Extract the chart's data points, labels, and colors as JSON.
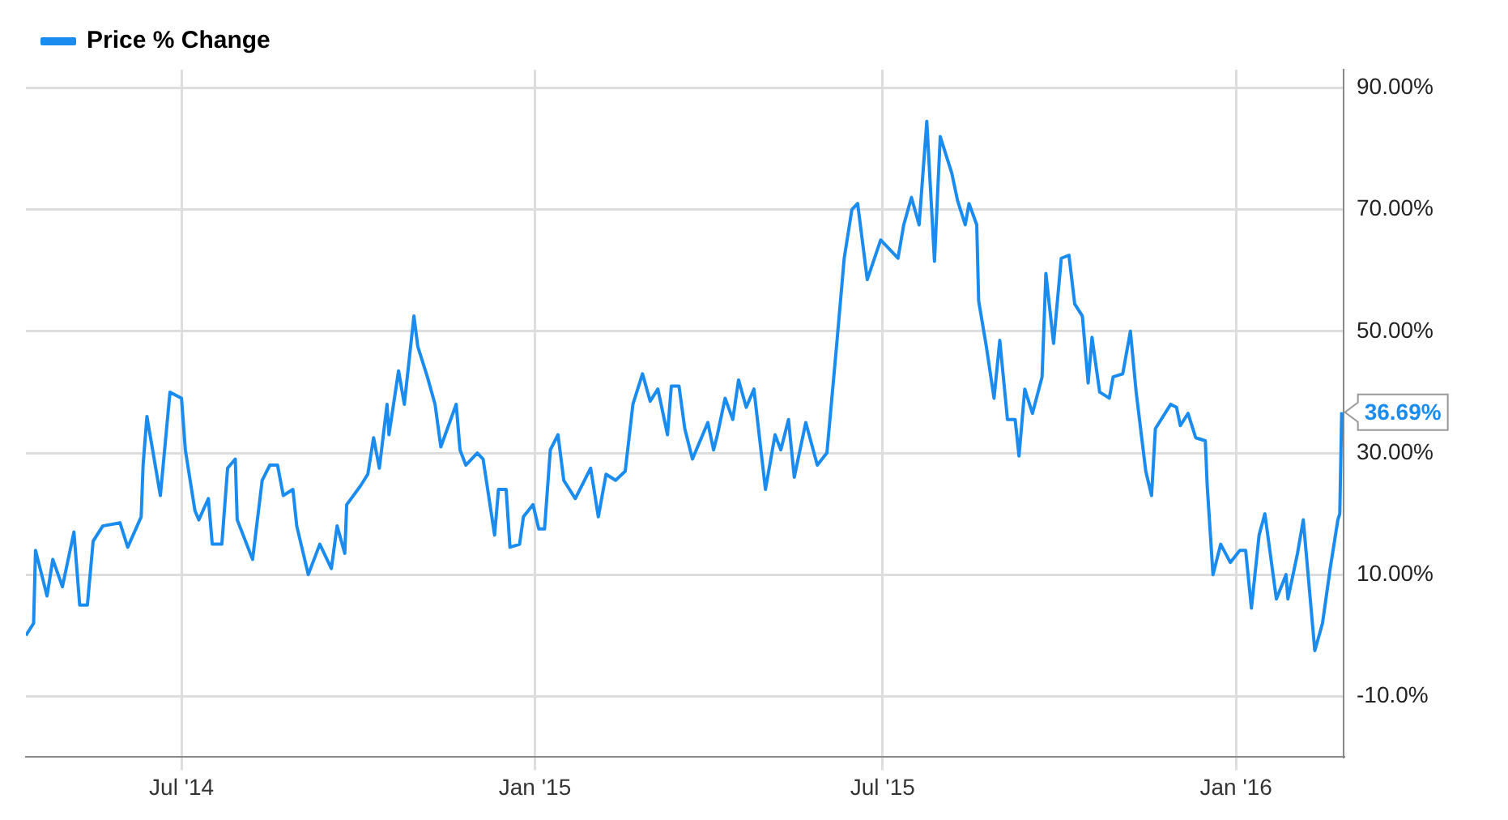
{
  "chart_data": {
    "type": "line",
    "legend": "top left",
    "grid": true,
    "marker": "none",
    "line_style": "solid",
    "xlim": [
      "2014-04-11",
      "2016-02-26"
    ],
    "xticks": [
      {
        "value": "2014-07-01",
        "label": "Jul '14"
      },
      {
        "value": "2015-01-01",
        "label": "Jan '15"
      },
      {
        "value": "2015-07-01",
        "label": "Jul '15"
      },
      {
        "value": "2016-01-01",
        "label": "Jan '16"
      }
    ],
    "ylim": [
      -20,
      93
    ],
    "yticks": [
      {
        "value": -10,
        "label": "-10.0%"
      },
      {
        "value": 10,
        "label": "10.00%"
      },
      {
        "value": 30,
        "label": "30.00%"
      },
      {
        "value": 50,
        "label": "50.00%"
      },
      {
        "value": 70,
        "label": "70.00%"
      },
      {
        "value": 90,
        "label": "90.00%"
      }
    ],
    "annotations": [
      {
        "text": "36.69%",
        "x": "2016-02-25",
        "y": 36.69
      }
    ],
    "x": [
      "2014-04-11",
      "2014-04-15",
      "2014-04-16",
      "2014-04-22",
      "2014-04-25",
      "2014-04-30",
      "2014-05-06",
      "2014-05-09",
      "2014-05-13",
      "2014-05-16",
      "2014-05-21",
      "2014-05-30",
      "2014-06-03",
      "2014-06-10",
      "2014-06-11",
      "2014-06-13",
      "2014-06-20",
      "2014-06-25",
      "2014-07-01",
      "2014-07-03",
      "2014-07-08",
      "2014-07-10",
      "2014-07-15",
      "2014-07-17",
      "2014-07-22",
      "2014-07-25",
      "2014-07-29",
      "2014-07-30",
      "2014-08-07",
      "2014-08-12",
      "2014-08-16",
      "2014-08-20",
      "2014-08-23",
      "2014-08-28",
      "2014-08-30",
      "2014-09-05",
      "2014-09-11",
      "2014-09-17",
      "2014-09-20",
      "2014-09-24",
      "2014-09-25",
      "2014-10-02",
      "2014-10-06",
      "2014-10-09",
      "2014-10-12",
      "2014-10-16",
      "2014-10-17",
      "2014-10-22",
      "2014-10-25",
      "2014-10-30",
      "2014-11-01",
      "2014-11-06",
      "2014-11-10",
      "2014-11-13",
      "2014-11-21",
      "2014-11-23",
      "2014-11-26",
      "2014-12-02",
      "2014-12-05",
      "2014-12-11",
      "2014-12-13",
      "2014-12-17",
      "2014-12-19",
      "2014-12-24",
      "2014-12-26",
      "2014-12-31",
      "2015-01-03",
      "2015-01-06",
      "2015-01-09",
      "2015-01-13",
      "2015-01-16",
      "2015-01-22",
      "2015-01-30",
      "2015-02-03",
      "2015-02-07",
      "2015-02-12",
      "2015-02-17",
      "2015-02-21",
      "2015-02-26",
      "2015-03-02",
      "2015-03-06",
      "2015-03-11",
      "2015-03-13",
      "2015-03-17",
      "2015-03-20",
      "2015-03-24",
      "2015-04-01",
      "2015-04-04",
      "2015-04-06",
      "2015-04-10",
      "2015-04-14",
      "2015-04-17",
      "2015-04-21",
      "2015-04-25",
      "2015-05-01",
      "2015-05-06",
      "2015-05-09",
      "2015-05-13",
      "2015-05-16",
      "2015-05-22",
      "2015-05-28",
      "2015-06-02",
      "2015-06-07",
      "2015-06-11",
      "2015-06-15",
      "2015-06-18",
      "2015-06-23",
      "2015-06-30",
      "2015-07-09",
      "2015-07-12",
      "2015-07-16",
      "2015-07-20",
      "2015-07-24",
      "2015-07-28",
      "2015-07-31",
      "2015-08-06",
      "2015-08-09",
      "2015-08-13",
      "2015-08-15",
      "2015-08-19",
      "2015-08-20",
      "2015-08-24",
      "2015-08-28",
      "2015-08-31",
      "2015-09-04",
      "2015-09-08",
      "2015-09-10",
      "2015-09-13",
      "2015-09-17",
      "2015-09-22",
      "2015-09-24",
      "2015-09-28",
      "2015-10-02",
      "2015-10-06",
      "2015-10-09",
      "2015-10-13",
      "2015-10-16",
      "2015-10-18",
      "2015-10-22",
      "2015-10-27",
      "2015-10-29",
      "2015-11-03",
      "2015-11-07",
      "2015-11-10",
      "2015-11-15",
      "2015-11-18",
      "2015-11-20",
      "2015-11-28",
      "2015-12-01",
      "2015-12-03",
      "2015-12-07",
      "2015-12-11",
      "2015-12-16",
      "2015-12-17",
      "2015-12-20",
      "2015-12-24",
      "2015-12-29",
      "2016-01-03",
      "2016-01-06",
      "2016-01-09",
      "2016-01-13",
      "2016-01-16",
      "2016-01-22",
      "2016-01-27",
      "2016-01-28",
      "2016-02-02",
      "2016-02-05",
      "2016-02-11",
      "2016-02-15",
      "2016-02-19",
      "2016-02-23",
      "2016-02-24",
      "2016-02-25"
    ],
    "series": [
      {
        "name": "Price % Change",
        "color": "#1a8cf0",
        "values": [
          0,
          2,
          14,
          6.5,
          12.5,
          8,
          17,
          5,
          5,
          15.5,
          18,
          18.5,
          14.5,
          19.5,
          28,
          36,
          23,
          40,
          39,
          30.5,
          20.5,
          19,
          22.5,
          15,
          15,
          27.5,
          29,
          19,
          12.5,
          25.5,
          28,
          28,
          23,
          24,
          18,
          10,
          15,
          11,
          18,
          13.5,
          21.5,
          24.5,
          26.5,
          32.5,
          27.5,
          38,
          33,
          43.5,
          38,
          52.5,
          47.5,
          42.5,
          38,
          31,
          38,
          30.5,
          28,
          30,
          29,
          16.5,
          24,
          24,
          14.5,
          15,
          19.5,
          21.5,
          17.5,
          17.5,
          30.5,
          33,
          25.5,
          22.5,
          27.5,
          19.5,
          26.5,
          25.5,
          27,
          38,
          43,
          38.5,
          40.5,
          33,
          41,
          41,
          34,
          29,
          35,
          30.5,
          33,
          39,
          35.5,
          42,
          37.5,
          40.5,
          24,
          33,
          30.5,
          35.5,
          26,
          35,
          28,
          30,
          47.5,
          62,
          70,
          71,
          58.5,
          65,
          62,
          67.5,
          72,
          67.5,
          84.5,
          61.5,
          82,
          76,
          71.5,
          67.5,
          71,
          67.5,
          55,
          47.5,
          39,
          48.5,
          35.5,
          35.5,
          29.5,
          40.5,
          36.5,
          42.5,
          59.5,
          48,
          62,
          62.5,
          54.5,
          52.5,
          41.5,
          49,
          40,
          39,
          42.5,
          43,
          50,
          40,
          27,
          23,
          34,
          38,
          37.5,
          34.5,
          36.5,
          32.5,
          32,
          24.5,
          10,
          15,
          12,
          14,
          14,
          4.5,
          16.5,
          20,
          6,
          10,
          6,
          13.5,
          19,
          -2.5,
          2,
          11,
          19,
          20,
          36.69
        ]
      }
    ]
  }
}
